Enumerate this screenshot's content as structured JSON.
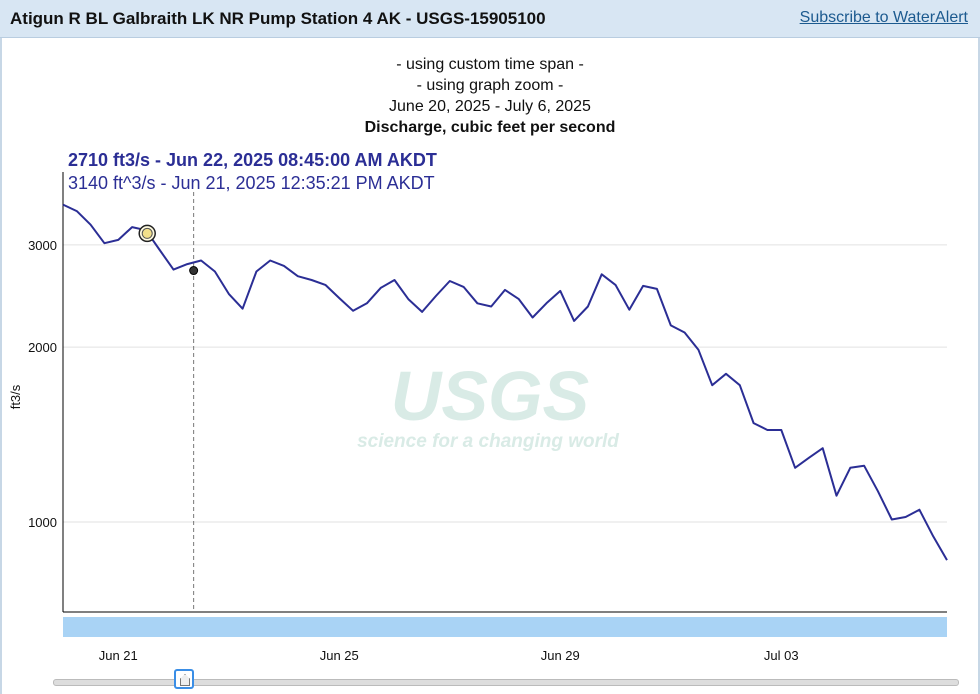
{
  "header": {
    "title": "Atigun R BL Galbraith LK NR Pump Station 4 AK - USGS-15905100",
    "subscribe": "Subscribe to WaterAlert"
  },
  "graph": {
    "lines": [
      "- using custom time span -",
      "- using graph zoom -",
      "June 20, 2025 - July 6, 2025"
    ],
    "parameter": "Discharge, cubic feet per second",
    "tooltip_primary": "2710 ft3/s - Jun 22, 2025 08:45:00 AM AKDT",
    "tooltip_secondary": "3140 ft^3/s - Jun 21, 2025 12:35:21 PM AKDT",
    "watermark_logo": "USGS",
    "watermark_tagline": "science for a changing world"
  },
  "chart_data": {
    "type": "line",
    "ylabel": "ft3/s",
    "yscale": "log",
    "ylim": [
      700,
      3700
    ],
    "yticks": [
      1000,
      2000,
      3000
    ],
    "ytick_labels": [
      "1000",
      "2000",
      "3000"
    ],
    "xlim": [
      "2025-06-20T00:00",
      "2025-07-06T00:00"
    ],
    "xticks": [
      "2025-06-21",
      "2025-06-25",
      "2025-06-29",
      "2025-07-03"
    ],
    "xtick_labels": [
      "Jun 21",
      "Jun 25",
      "Jun 29",
      "Jul 03"
    ],
    "grid": "horizontal",
    "line_color": "#2b2e95",
    "series": [
      {
        "x": [
          "2025-06-20T00:00",
          "2025-06-20T06:00",
          "2025-06-20T12:00",
          "2025-06-20T18:00",
          "2025-06-21T00:00",
          "2025-06-21T06:00",
          "2025-06-21T12:00",
          "2025-06-21T18:00",
          "2025-06-22T00:00",
          "2025-06-22T06:00",
          "2025-06-22T12:00",
          "2025-06-22T18:00",
          "2025-06-23T00:00",
          "2025-06-23T06:00",
          "2025-06-23T12:00",
          "2025-06-23T18:00",
          "2025-06-24T00:00",
          "2025-06-24T06:00",
          "2025-06-24T12:00",
          "2025-06-24T18:00",
          "2025-06-25T00:00",
          "2025-06-25T06:00",
          "2025-06-25T12:00",
          "2025-06-25T18:00",
          "2025-06-26T00:00",
          "2025-06-26T06:00",
          "2025-06-26T12:00",
          "2025-06-26T18:00",
          "2025-06-27T00:00",
          "2025-06-27T06:00",
          "2025-06-27T12:00",
          "2025-06-27T18:00",
          "2025-06-28T00:00",
          "2025-06-28T06:00",
          "2025-06-28T12:00",
          "2025-06-28T18:00",
          "2025-06-29T00:00",
          "2025-06-29T06:00",
          "2025-06-29T12:00",
          "2025-06-29T18:00",
          "2025-06-30T00:00",
          "2025-06-30T06:00",
          "2025-06-30T12:00",
          "2025-06-30T18:00",
          "2025-07-01T00:00",
          "2025-07-01T06:00",
          "2025-07-01T12:00",
          "2025-07-01T18:00",
          "2025-07-02T00:00",
          "2025-07-02T06:00",
          "2025-07-02T12:00",
          "2025-07-02T18:00",
          "2025-07-03T00:00",
          "2025-07-03T06:00",
          "2025-07-03T12:00",
          "2025-07-03T18:00",
          "2025-07-04T00:00",
          "2025-07-04T06:00",
          "2025-07-04T12:00",
          "2025-07-04T18:00",
          "2025-07-05T00:00",
          "2025-07-05T06:00",
          "2025-07-05T12:00",
          "2025-07-05T18:00",
          "2025-07-06T00:00"
        ],
        "y": [
          3520,
          3430,
          3250,
          3020,
          3060,
          3220,
          3180,
          2940,
          2720,
          2780,
          2820,
          2700,
          2470,
          2330,
          2700,
          2820,
          2760,
          2650,
          2610,
          2560,
          2430,
          2310,
          2380,
          2530,
          2610,
          2420,
          2300,
          2450,
          2600,
          2540,
          2380,
          2350,
          2510,
          2420,
          2250,
          2380,
          2500,
          2220,
          2350,
          2670,
          2560,
          2320,
          2550,
          2520,
          2180,
          2120,
          1980,
          1720,
          1800,
          1720,
          1480,
          1440,
          1440,
          1240,
          1290,
          1340,
          1110,
          1240,
          1250,
          1130,
          1010,
          1020,
          1050,
          945,
          860
        ]
      }
    ],
    "markers": [
      {
        "x": "2025-06-21T12:35",
        "y": 3140
      },
      {
        "x": "2025-06-22T08:45",
        "y": 2710
      }
    ]
  }
}
